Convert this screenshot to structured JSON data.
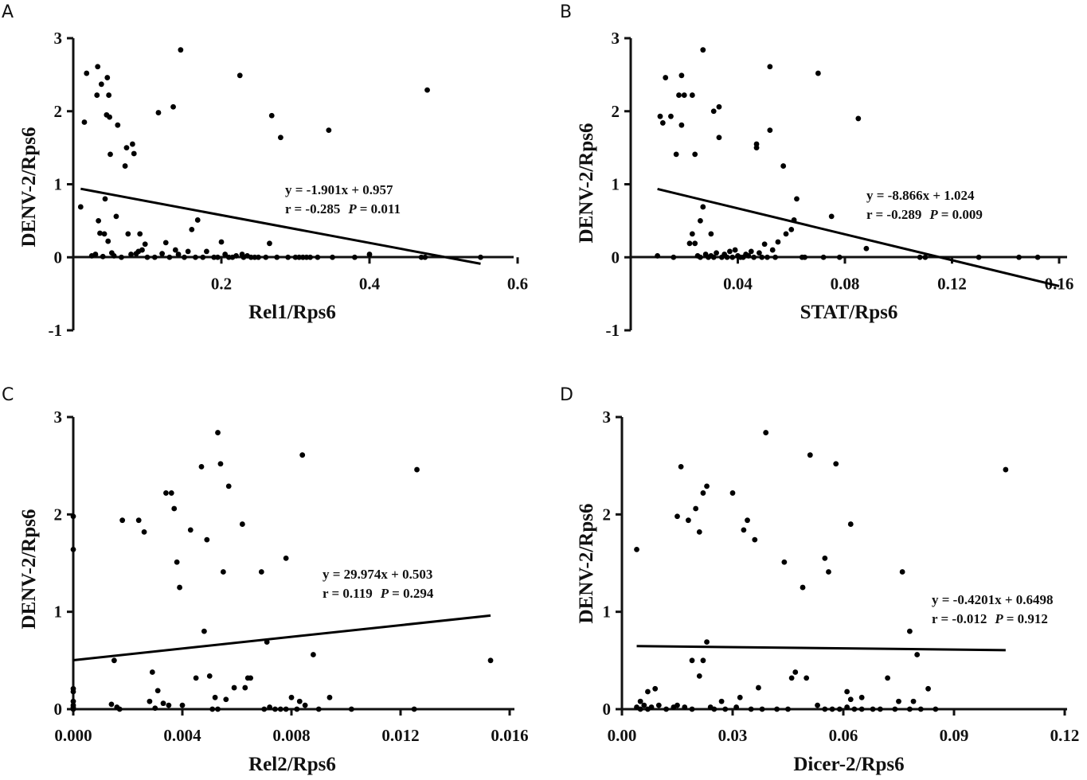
{
  "chart_data": [
    {
      "type": "scatter",
      "panel": "A",
      "xlabel": "Rel1/Rps6",
      "ylabel": "DENV-2/Rps6",
      "xlim": [
        0,
        0.6
      ],
      "ylim": [
        -1,
        3
      ],
      "x_ticks": [
        0.2,
        0.4,
        0.6
      ],
      "x_tick_labels": [
        "0.2",
        "0.4",
        "0.6"
      ],
      "y_ticks": [
        -1,
        0,
        1,
        2,
        3
      ],
      "y_tick_labels": [
        "-1",
        "0",
        "1",
        "2",
        "3"
      ],
      "equation": "y = -1.901x + 0.957",
      "stats_r": "r = -0.285",
      "stats_p_label": "P",
      "stats_p_value": "= 0.011",
      "regression": {
        "slope": -1.901,
        "intercept": 0.957,
        "x_range": [
          0.01,
          0.55
        ]
      },
      "points": [
        [
          0.01,
          0.69
        ],
        [
          0.015,
          1.85
        ],
        [
          0.018,
          2.52
        ],
        [
          0.025,
          0.02
        ],
        [
          0.03,
          0.04
        ],
        [
          0.032,
          2.22
        ],
        [
          0.033,
          2.61
        ],
        [
          0.034,
          0.5
        ],
        [
          0.036,
          0.33
        ],
        [
          0.038,
          2.37
        ],
        [
          0.04,
          0.01
        ],
        [
          0.042,
          0.32
        ],
        [
          0.043,
          0.8
        ],
        [
          0.045,
          1.95
        ],
        [
          0.046,
          2.46
        ],
        [
          0.047,
          0.22
        ],
        [
          0.048,
          2.22
        ],
        [
          0.049,
          1.92
        ],
        [
          0.05,
          1.41
        ],
        [
          0.052,
          0.06
        ],
        [
          0.055,
          0.02
        ],
        [
          0.058,
          0.56
        ],
        [
          0.06,
          1.81
        ],
        [
          0.065,
          0.0
        ],
        [
          0.07,
          1.25
        ],
        [
          0.072,
          1.5
        ],
        [
          0.074,
          0.32
        ],
        [
          0.078,
          0.04
        ],
        [
          0.08,
          1.55
        ],
        [
          0.082,
          1.42
        ],
        [
          0.085,
          0.05
        ],
        [
          0.088,
          0.08
        ],
        [
          0.09,
          0.32
        ],
        [
          0.093,
          0.1
        ],
        [
          0.097,
          0.18
        ],
        [
          0.1,
          0.0
        ],
        [
          0.11,
          0.0
        ],
        [
          0.115,
          1.98
        ],
        [
          0.12,
          0.05
        ],
        [
          0.125,
          0.2
        ],
        [
          0.13,
          0.0
        ],
        [
          0.135,
          2.06
        ],
        [
          0.138,
          0.1
        ],
        [
          0.142,
          0.04
        ],
        [
          0.145,
          2.84
        ],
        [
          0.15,
          0.0
        ],
        [
          0.155,
          0.08
        ],
        [
          0.16,
          0.38
        ],
        [
          0.165,
          0.0
        ],
        [
          0.168,
          0.51
        ],
        [
          0.175,
          0.0
        ],
        [
          0.18,
          0.08
        ],
        [
          0.19,
          0.0
        ],
        [
          0.195,
          0.0
        ],
        [
          0.2,
          0.21
        ],
        [
          0.205,
          0.04
        ],
        [
          0.21,
          0.0
        ],
        [
          0.215,
          0.0
        ],
        [
          0.22,
          0.02
        ],
        [
          0.225,
          2.49
        ],
        [
          0.228,
          0.04
        ],
        [
          0.23,
          0.0
        ],
        [
          0.235,
          0.02
        ],
        [
          0.24,
          0.0
        ],
        [
          0.245,
          0.0
        ],
        [
          0.25,
          0.0
        ],
        [
          0.26,
          0.0
        ],
        [
          0.265,
          0.19
        ],
        [
          0.268,
          1.94
        ],
        [
          0.275,
          0.0
        ],
        [
          0.28,
          1.64
        ],
        [
          0.29,
          0.0
        ],
        [
          0.3,
          0.0
        ],
        [
          0.305,
          0.0
        ],
        [
          0.31,
          0.0
        ],
        [
          0.315,
          0.0
        ],
        [
          0.32,
          0.0
        ],
        [
          0.33,
          0.0
        ],
        [
          0.345,
          1.74
        ],
        [
          0.35,
          0.0
        ],
        [
          0.38,
          0.0
        ],
        [
          0.4,
          0.04
        ],
        [
          0.47,
          0.0
        ],
        [
          0.475,
          0.0
        ],
        [
          0.478,
          2.29
        ],
        [
          0.55,
          0.0
        ]
      ]
    },
    {
      "type": "scatter",
      "panel": "B",
      "xlabel": "STAT/Rps6",
      "ylabel": "DENV-2/Rps6",
      "xlim": [
        0,
        0.16
      ],
      "ylim": [
        -1,
        3
      ],
      "x_ticks": [
        0.04,
        0.08,
        0.12,
        0.16
      ],
      "x_tick_labels": [
        "0.04",
        "0.08",
        "0.12",
        "0.16"
      ],
      "y_ticks": [
        -1,
        0,
        1,
        2,
        3
      ],
      "y_tick_labels": [
        "-1",
        "0",
        "1",
        "2",
        "3"
      ],
      "equation": "y = -8.866x + 1.024",
      "stats_r": "r = -0.289",
      "stats_p_label": "P",
      "stats_p_value": "= 0.009",
      "regression": {
        "slope": -8.866,
        "intercept": 1.024,
        "x_range": [
          0.01,
          0.16
        ]
      },
      "points": [
        [
          0.01,
          0.02
        ],
        [
          0.011,
          1.93
        ],
        [
          0.012,
          1.84
        ],
        [
          0.013,
          2.46
        ],
        [
          0.015,
          1.93
        ],
        [
          0.016,
          0.0
        ],
        [
          0.017,
          1.41
        ],
        [
          0.018,
          2.22
        ],
        [
          0.019,
          1.81
        ],
        [
          0.019,
          2.49
        ],
        [
          0.02,
          2.22
        ],
        [
          0.022,
          0.19
        ],
        [
          0.023,
          0.32
        ],
        [
          0.023,
          2.22
        ],
        [
          0.024,
          1.41
        ],
        [
          0.024,
          0.19
        ],
        [
          0.025,
          0.02
        ],
        [
          0.026,
          0.5
        ],
        [
          0.026,
          0.0
        ],
        [
          0.027,
          0.69
        ],
        [
          0.027,
          2.84
        ],
        [
          0.028,
          0.04
        ],
        [
          0.029,
          0.0
        ],
        [
          0.03,
          0.02
        ],
        [
          0.03,
          0.32
        ],
        [
          0.031,
          0.0
        ],
        [
          0.031,
          2.0
        ],
        [
          0.032,
          0.06
        ],
        [
          0.033,
          1.64
        ],
        [
          0.033,
          2.06
        ],
        [
          0.034,
          0.0
        ],
        [
          0.035,
          0.04
        ],
        [
          0.036,
          0.0
        ],
        [
          0.037,
          0.08
        ],
        [
          0.038,
          0.0
        ],
        [
          0.039,
          0.1
        ],
        [
          0.04,
          0.02
        ],
        [
          0.041,
          0.0
        ],
        [
          0.042,
          0.0
        ],
        [
          0.043,
          0.04
        ],
        [
          0.044,
          0.02
        ],
        [
          0.045,
          0.08
        ],
        [
          0.046,
          0.0
        ],
        [
          0.047,
          1.5
        ],
        [
          0.047,
          1.55
        ],
        [
          0.048,
          0.06
        ],
        [
          0.049,
          0.0
        ],
        [
          0.05,
          0.18
        ],
        [
          0.051,
          0.0
        ],
        [
          0.052,
          1.74
        ],
        [
          0.052,
          2.61
        ],
        [
          0.053,
          0.1
        ],
        [
          0.054,
          0.0
        ],
        [
          0.055,
          0.21
        ],
        [
          0.057,
          1.25
        ],
        [
          0.058,
          0.32
        ],
        [
          0.06,
          0.38
        ],
        [
          0.061,
          0.51
        ],
        [
          0.062,
          0.8
        ],
        [
          0.064,
          0.0
        ],
        [
          0.065,
          0.0
        ],
        [
          0.07,
          2.52
        ],
        [
          0.072,
          0.0
        ],
        [
          0.075,
          0.56
        ],
        [
          0.078,
          0.0
        ],
        [
          0.085,
          1.9
        ],
        [
          0.088,
          0.12
        ],
        [
          0.108,
          0.0
        ],
        [
          0.11,
          0.0
        ],
        [
          0.13,
          0.0
        ],
        [
          0.145,
          0.0
        ],
        [
          0.152,
          0.0
        ]
      ]
    },
    {
      "type": "scatter",
      "panel": "C",
      "xlabel": "Rel2/Rps6",
      "ylabel": "DENV-2/Rps6",
      "xlim": [
        0,
        0.016
      ],
      "ylim": [
        0,
        3
      ],
      "x_ticks": [
        0,
        0.004,
        0.008,
        0.012,
        0.016
      ],
      "x_tick_labels": [
        "0.000",
        "0.004",
        "0.008",
        "0.012",
        "0.016"
      ],
      "y_ticks": [
        0,
        1,
        2,
        3
      ],
      "y_tick_labels": [
        "0",
        "1",
        "2",
        "3"
      ],
      "equation": "y = 29.974x + 0.503",
      "stats_r": "r = 0.119",
      "stats_p_label": "P",
      "stats_p_value": "= 0.294",
      "regression": {
        "slope": 29.974,
        "intercept": 0.503,
        "x_range": [
          0,
          0.0153
        ]
      },
      "points": [
        [
          0.0,
          1.98
        ],
        [
          0.0,
          1.64
        ],
        [
          0.0,
          0.21
        ],
        [
          0.0,
          0.18
        ],
        [
          0.0,
          0.08
        ],
        [
          0.0,
          0.04
        ],
        [
          0.0,
          0.02
        ],
        [
          0.0,
          0.0
        ],
        [
          0.0014,
          0.05
        ],
        [
          0.0015,
          0.5
        ],
        [
          0.0016,
          0.02
        ],
        [
          0.0017,
          0.0
        ],
        [
          0.0018,
          1.94
        ],
        [
          0.0024,
          1.94
        ],
        [
          0.0026,
          1.82
        ],
        [
          0.0028,
          0.08
        ],
        [
          0.0029,
          0.38
        ],
        [
          0.003,
          0.01
        ],
        [
          0.0031,
          0.19
        ],
        [
          0.0033,
          0.06
        ],
        [
          0.0034,
          2.22
        ],
        [
          0.0035,
          0.04
        ],
        [
          0.0036,
          2.22
        ],
        [
          0.0037,
          2.06
        ],
        [
          0.0038,
          1.51
        ],
        [
          0.0039,
          1.25
        ],
        [
          0.004,
          0.04
        ],
        [
          0.0043,
          1.84
        ],
        [
          0.0045,
          0.32
        ],
        [
          0.0047,
          2.49
        ],
        [
          0.0048,
          0.8
        ],
        [
          0.0049,
          1.74
        ],
        [
          0.005,
          0.34
        ],
        [
          0.0051,
          0.0
        ],
        [
          0.0052,
          0.12
        ],
        [
          0.0053,
          0.0
        ],
        [
          0.0053,
          2.84
        ],
        [
          0.0054,
          2.52
        ],
        [
          0.0055,
          1.41
        ],
        [
          0.0056,
          0.1
        ],
        [
          0.0057,
          2.29
        ],
        [
          0.0059,
          0.22
        ],
        [
          0.0062,
          1.9
        ],
        [
          0.0063,
          0.22
        ],
        [
          0.0064,
          0.32
        ],
        [
          0.0065,
          0.32
        ],
        [
          0.0069,
          1.41
        ],
        [
          0.007,
          0.0
        ],
        [
          0.0071,
          0.69
        ],
        [
          0.0072,
          0.02
        ],
        [
          0.0074,
          0.0
        ],
        [
          0.0076,
          0.0
        ],
        [
          0.0078,
          0.0
        ],
        [
          0.0078,
          1.55
        ],
        [
          0.008,
          0.12
        ],
        [
          0.0082,
          0.0
        ],
        [
          0.0083,
          0.08
        ],
        [
          0.0084,
          2.61
        ],
        [
          0.0085,
          0.04
        ],
        [
          0.0088,
          0.56
        ],
        [
          0.009,
          0.0
        ],
        [
          0.0094,
          0.12
        ],
        [
          0.0102,
          0.0
        ],
        [
          0.0125,
          0.0
        ],
        [
          0.0126,
          2.46
        ],
        [
          0.0153,
          0.5
        ]
      ]
    },
    {
      "type": "scatter",
      "panel": "D",
      "xlabel": "Dicer-2/Rps6",
      "ylabel": "DENV-2/Rps6",
      "xlim": [
        0,
        0.12
      ],
      "ylim": [
        0,
        3
      ],
      "x_ticks": [
        0,
        0.03,
        0.06,
        0.09,
        0.12
      ],
      "x_tick_labels": [
        "0.00",
        "0.03",
        "0.06",
        "0.09",
        "0.12"
      ],
      "y_ticks": [
        0,
        1,
        2,
        3
      ],
      "y_tick_labels": [
        "0",
        "1",
        "2",
        "3"
      ],
      "equation": "y = -0.4201x + 0.6498",
      "stats_r": "r = -0.012",
      "stats_p_label": "P",
      "stats_p_value": "= 0.912",
      "regression": {
        "slope": -0.4201,
        "intercept": 0.6498,
        "x_range": [
          0.004,
          0.104
        ]
      },
      "points": [
        [
          0.004,
          1.64
        ],
        [
          0.004,
          0.02
        ],
        [
          0.005,
          0.08
        ],
        [
          0.005,
          0.0
        ],
        [
          0.006,
          0.04
        ],
        [
          0.007,
          0.0
        ],
        [
          0.007,
          0.18
        ],
        [
          0.008,
          0.02
        ],
        [
          0.009,
          0.21
        ],
        [
          0.01,
          0.04
        ],
        [
          0.012,
          0.0
        ],
        [
          0.014,
          0.02
        ],
        [
          0.015,
          1.98
        ],
        [
          0.015,
          0.04
        ],
        [
          0.016,
          2.49
        ],
        [
          0.017,
          0.02
        ],
        [
          0.018,
          1.94
        ],
        [
          0.019,
          0.5
        ],
        [
          0.019,
          0.0
        ],
        [
          0.02,
          2.06
        ],
        [
          0.021,
          0.34
        ],
        [
          0.021,
          1.82
        ],
        [
          0.022,
          2.22
        ],
        [
          0.022,
          0.5
        ],
        [
          0.023,
          2.29
        ],
        [
          0.023,
          0.69
        ],
        [
          0.024,
          0.02
        ],
        [
          0.025,
          0.0
        ],
        [
          0.027,
          0.08
        ],
        [
          0.028,
          0.0
        ],
        [
          0.03,
          2.22
        ],
        [
          0.031,
          0.02
        ],
        [
          0.032,
          0.12
        ],
        [
          0.033,
          1.84
        ],
        [
          0.034,
          1.94
        ],
        [
          0.035,
          0.0
        ],
        [
          0.036,
          1.74
        ],
        [
          0.037,
          0.22
        ],
        [
          0.038,
          0.0
        ],
        [
          0.039,
          2.84
        ],
        [
          0.042,
          0.0
        ],
        [
          0.044,
          1.51
        ],
        [
          0.045,
          0.0
        ],
        [
          0.046,
          0.32
        ],
        [
          0.047,
          0.38
        ],
        [
          0.049,
          1.25
        ],
        [
          0.05,
          0.32
        ],
        [
          0.051,
          2.61
        ],
        [
          0.053,
          0.04
        ],
        [
          0.055,
          1.55
        ],
        [
          0.055,
          0.0
        ],
        [
          0.056,
          1.41
        ],
        [
          0.057,
          0.0
        ],
        [
          0.058,
          2.52
        ],
        [
          0.059,
          0.0
        ],
        [
          0.061,
          0.02
        ],
        [
          0.061,
          0.18
        ],
        [
          0.062,
          0.1
        ],
        [
          0.062,
          1.9
        ],
        [
          0.063,
          0.0
        ],
        [
          0.065,
          0.12
        ],
        [
          0.065,
          0.0
        ],
        [
          0.068,
          0.0
        ],
        [
          0.07,
          0.0
        ],
        [
          0.072,
          0.32
        ],
        [
          0.074,
          0.0
        ],
        [
          0.075,
          0.08
        ],
        [
          0.076,
          1.41
        ],
        [
          0.078,
          0.0
        ],
        [
          0.078,
          0.8
        ],
        [
          0.079,
          0.08
        ],
        [
          0.08,
          0.56
        ],
        [
          0.081,
          0.0
        ],
        [
          0.083,
          0.21
        ],
        [
          0.085,
          0.0
        ],
        [
          0.104,
          2.46
        ]
      ]
    }
  ],
  "panels": [
    {
      "letter": "A"
    },
    {
      "letter": "B"
    },
    {
      "letter": "C"
    },
    {
      "letter": "D"
    }
  ]
}
